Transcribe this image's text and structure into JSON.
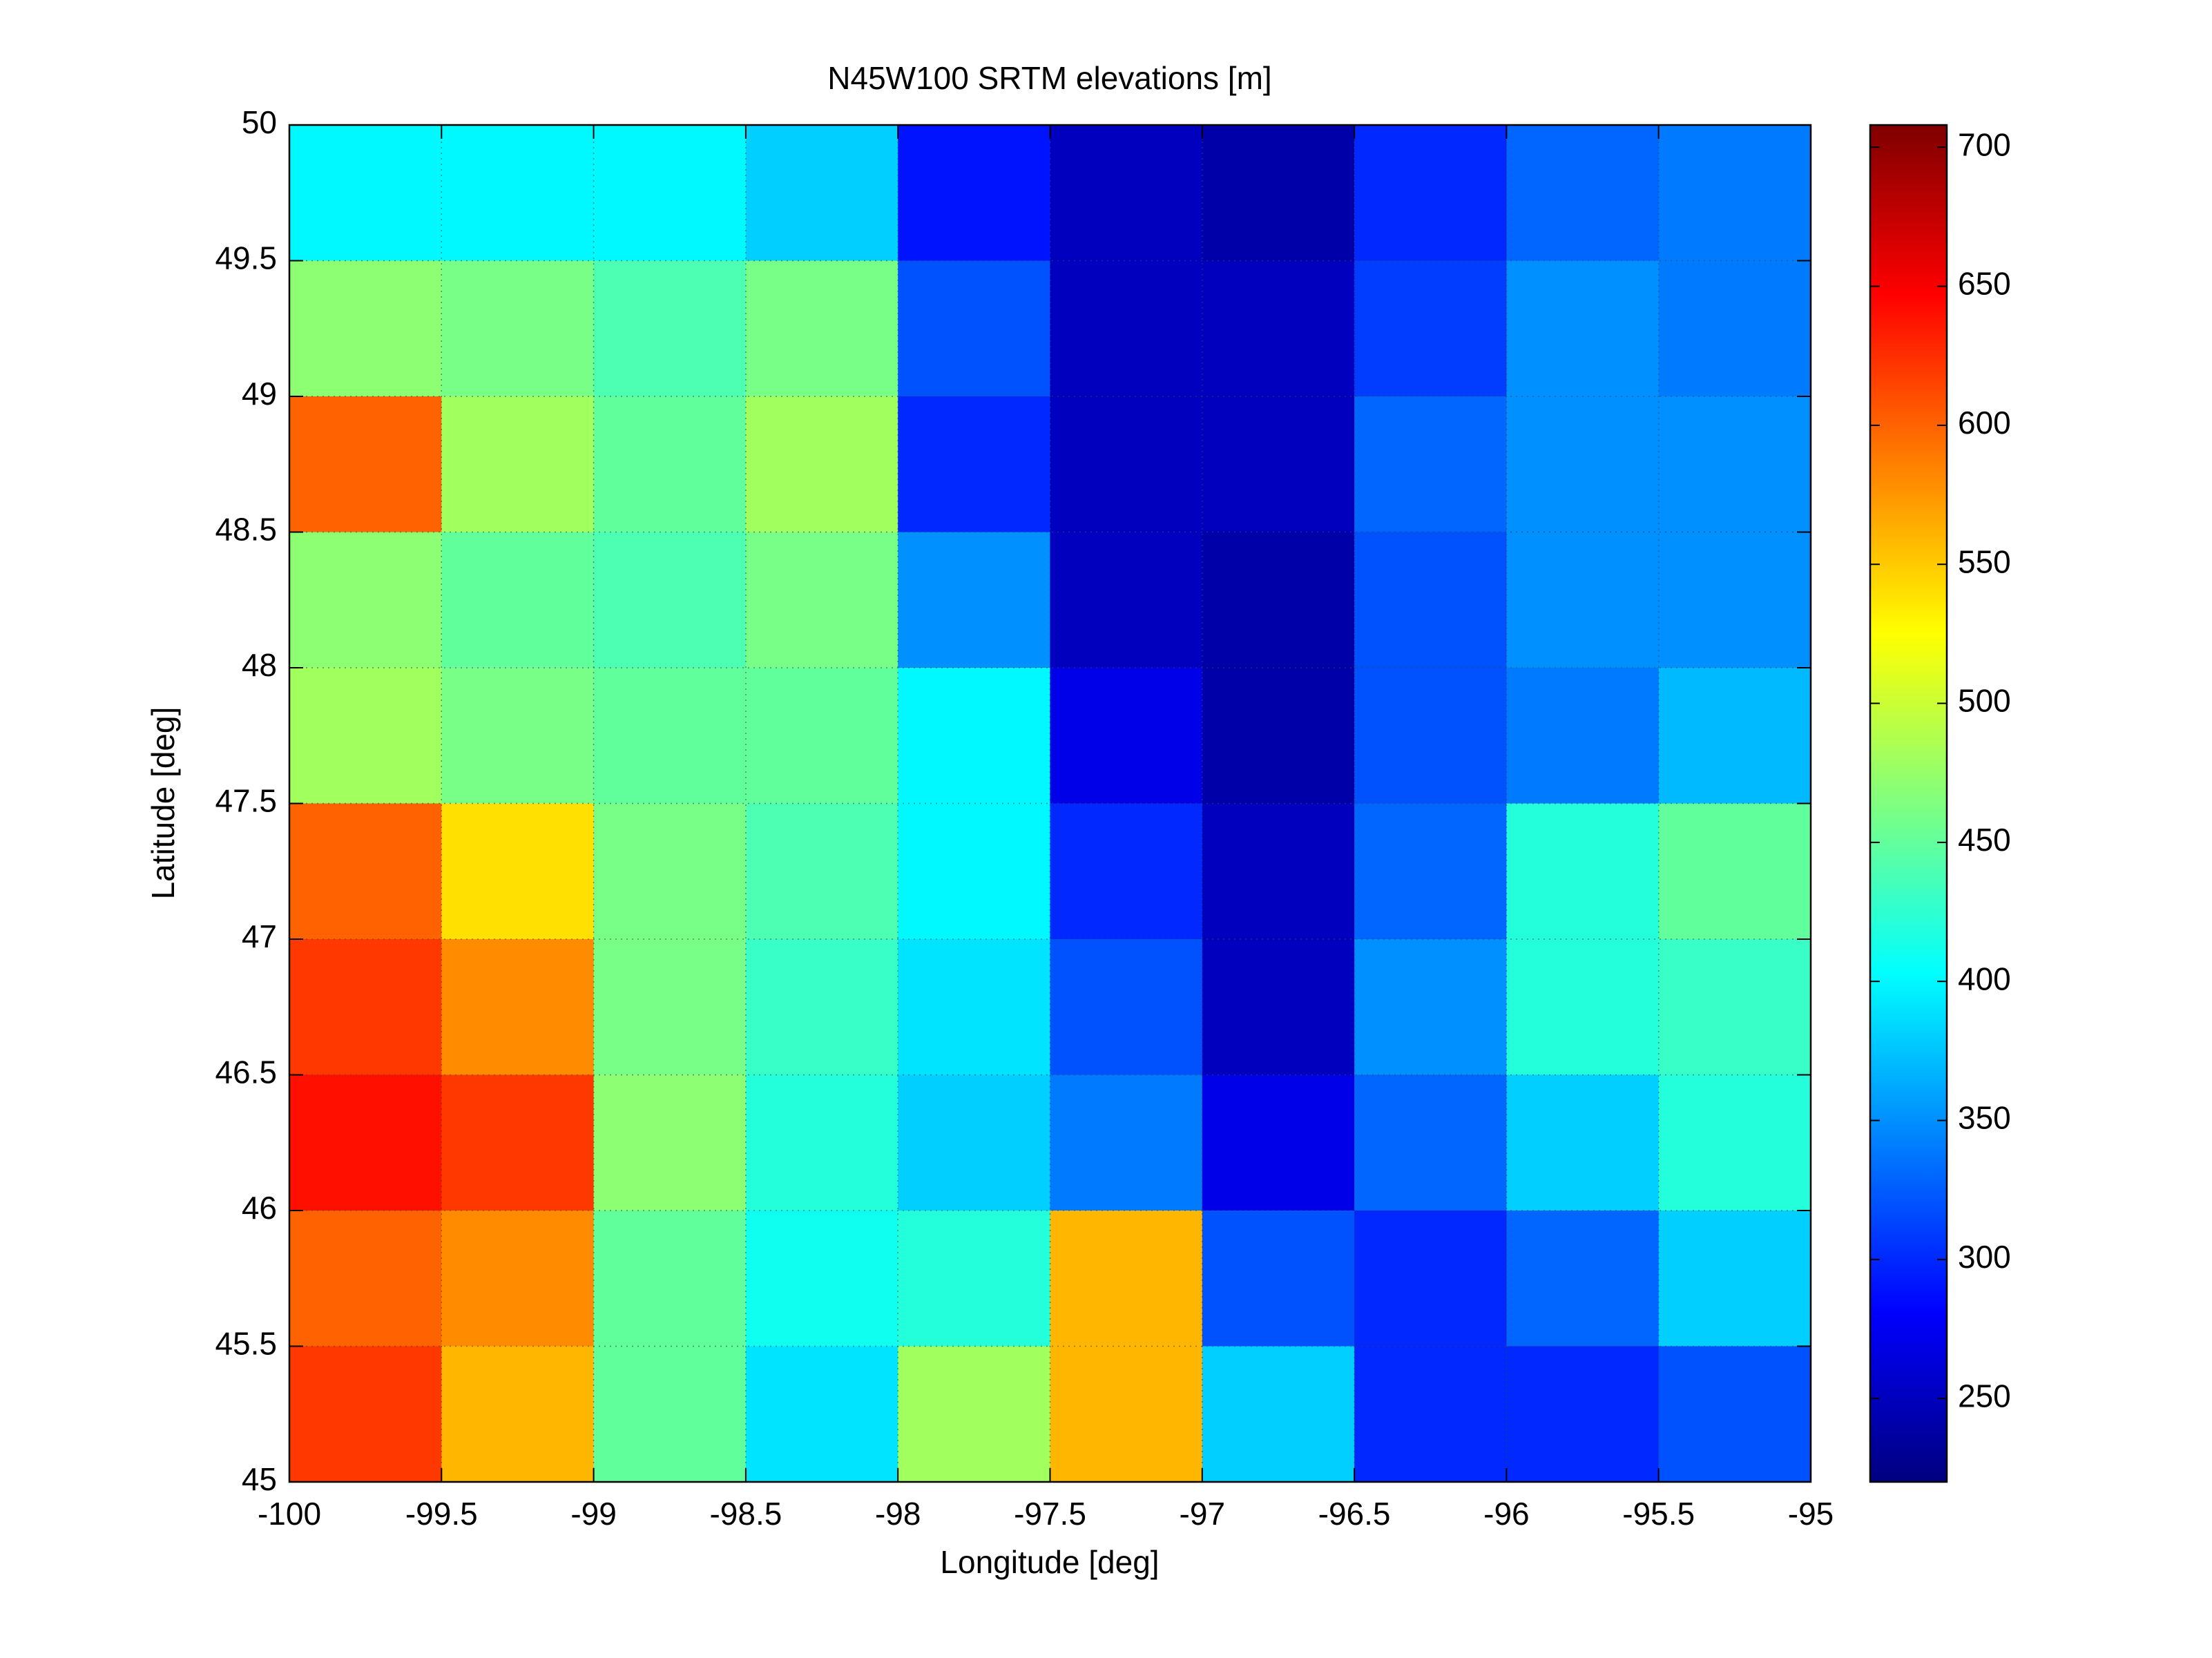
{
  "chart_data": {
    "type": "heatmap",
    "title": "N45W100 SRTM elevations [m]",
    "xlabel": "Longitude [deg]",
    "ylabel": "Latitude [deg]",
    "x": [
      -99.75,
      -99.25,
      -98.75,
      -98.25,
      -97.75,
      -97.25,
      -96.75,
      -96.25,
      -95.75,
      -95.25
    ],
    "y": [
      49.75,
      49.25,
      48.75,
      48.25,
      47.75,
      47.25,
      46.75,
      46.25,
      45.75,
      45.25
    ],
    "values": [
      [
        400,
        400,
        400,
        380,
        290,
        250,
        240,
        300,
        330,
        340
      ],
      [
        470,
        460,
        440,
        460,
        320,
        250,
        250,
        310,
        350,
        340
      ],
      [
        600,
        480,
        450,
        480,
        300,
        250,
        250,
        330,
        350,
        350
      ],
      [
        470,
        450,
        440,
        460,
        350,
        250,
        240,
        320,
        350,
        350
      ],
      [
        480,
        460,
        450,
        450,
        400,
        270,
        240,
        320,
        340,
        370
      ],
      [
        600,
        540,
        460,
        440,
        400,
        300,
        250,
        330,
        420,
        450
      ],
      [
        620,
        580,
        460,
        430,
        390,
        320,
        250,
        350,
        420,
        430
      ],
      [
        640,
        620,
        470,
        420,
        380,
        340,
        270,
        330,
        380,
        420
      ],
      [
        600,
        580,
        450,
        410,
        420,
        560,
        320,
        300,
        330,
        380
      ],
      [
        620,
        560,
        450,
        390,
        480,
        560,
        380,
        300,
        300,
        320
      ]
    ],
    "xlim": [
      -100,
      -95
    ],
    "ylim": [
      45,
      50
    ],
    "xticks": [
      -100,
      -99.5,
      -99,
      -98.5,
      -98,
      -97.5,
      -97,
      -96.5,
      -96,
      -95.5,
      -95
    ],
    "yticks": [
      45,
      45.5,
      46,
      46.5,
      47,
      47.5,
      48,
      48.5,
      49,
      49.5,
      50
    ],
    "grid": true,
    "colormap": "jet",
    "clim": [
      220,
      708
    ],
    "cticks": [
      250,
      300,
      350,
      400,
      450,
      500,
      550,
      600,
      650,
      700
    ]
  }
}
